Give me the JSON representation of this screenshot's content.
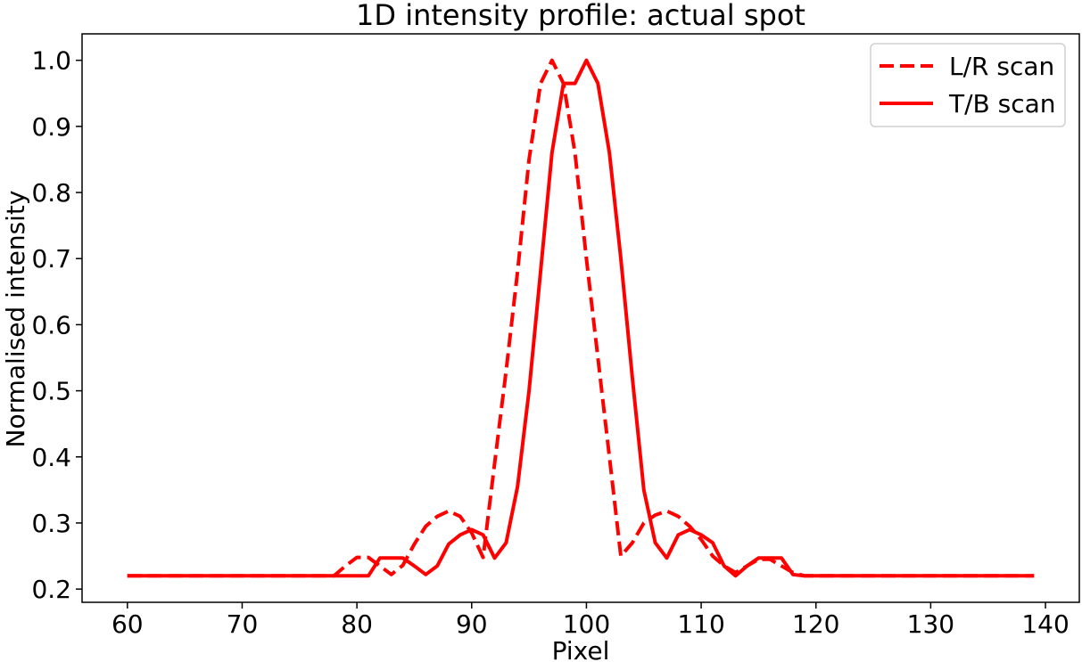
{
  "chart_data": {
    "type": "line",
    "title": "1D intensity profile: actual spot",
    "xlabel": "Pixel",
    "ylabel": "Normalised intensity",
    "xlim": [
      56.05,
      142.95
    ],
    "ylim": [
      0.18,
      1.04
    ],
    "xticks": [
      60,
      70,
      80,
      90,
      100,
      110,
      120,
      130,
      140
    ],
    "yticks": [
      0.2,
      0.3,
      0.4,
      0.5,
      0.6,
      0.7,
      0.8,
      0.9,
      1.0
    ],
    "grid": false,
    "legend_position": "top-right",
    "series": [
      {
        "name": "L/R scan",
        "color": "#ff0000",
        "linestyle": "dashed",
        "x": [
          60,
          61,
          62,
          63,
          64,
          65,
          66,
          67,
          68,
          69,
          70,
          71,
          72,
          73,
          74,
          75,
          76,
          77,
          78,
          79,
          80,
          81,
          82,
          83,
          84,
          85,
          86,
          87,
          88,
          89,
          90,
          91,
          92,
          93,
          94,
          95,
          96,
          97,
          98,
          99,
          100,
          101,
          102,
          103,
          104,
          105,
          106,
          107,
          108,
          109,
          110,
          111,
          112,
          113,
          114,
          115,
          116,
          117,
          118,
          119,
          120,
          121,
          122,
          123,
          124,
          125,
          126,
          127,
          128,
          129,
          130,
          131,
          132,
          133,
          134,
          135,
          136,
          137,
          138,
          139
        ],
        "values": [
          0.22,
          0.22,
          0.22,
          0.22,
          0.22,
          0.22,
          0.22,
          0.22,
          0.22,
          0.22,
          0.22,
          0.22,
          0.22,
          0.22,
          0.22,
          0.22,
          0.22,
          0.22,
          0.22,
          0.235,
          0.248,
          0.248,
          0.235,
          0.222,
          0.236,
          0.268,
          0.295,
          0.31,
          0.318,
          0.31,
          0.285,
          0.248,
          0.39,
          0.53,
          0.68,
          0.85,
          0.965,
          1.0,
          0.965,
          0.86,
          0.7,
          0.55,
          0.4,
          0.25,
          0.27,
          0.3,
          0.312,
          0.318,
          0.31,
          0.295,
          0.275,
          0.25,
          0.235,
          0.225,
          0.235,
          0.245,
          0.245,
          0.235,
          0.225,
          0.22,
          0.22,
          0.22,
          0.22,
          0.22,
          0.22,
          0.22,
          0.22,
          0.22,
          0.22,
          0.22,
          0.22,
          0.22,
          0.22,
          0.22,
          0.22,
          0.22,
          0.22,
          0.22,
          0.22,
          0.22
        ]
      },
      {
        "name": "T/B scan",
        "color": "#ff0000",
        "linestyle": "solid",
        "x": [
          60,
          61,
          62,
          63,
          64,
          65,
          66,
          67,
          68,
          69,
          70,
          71,
          72,
          73,
          74,
          75,
          76,
          77,
          78,
          79,
          80,
          81,
          82,
          83,
          84,
          85,
          86,
          87,
          88,
          89,
          90,
          91,
          92,
          93,
          94,
          95,
          96,
          97,
          98,
          99,
          100,
          101,
          102,
          103,
          104,
          105,
          106,
          107,
          108,
          109,
          110,
          111,
          112,
          113,
          114,
          115,
          116,
          117,
          118,
          119,
          120,
          121,
          122,
          123,
          124,
          125,
          126,
          127,
          128,
          129,
          130,
          131,
          132,
          133,
          134,
          135,
          136,
          137,
          138,
          139
        ],
        "values": [
          0.22,
          0.22,
          0.22,
          0.22,
          0.22,
          0.22,
          0.22,
          0.22,
          0.22,
          0.22,
          0.22,
          0.22,
          0.22,
          0.22,
          0.22,
          0.22,
          0.22,
          0.22,
          0.22,
          0.22,
          0.22,
          0.22,
          0.247,
          0.247,
          0.247,
          0.235,
          0.222,
          0.235,
          0.268,
          0.282,
          0.29,
          0.282,
          0.247,
          0.27,
          0.355,
          0.5,
          0.68,
          0.86,
          0.965,
          0.965,
          1.0,
          0.965,
          0.86,
          0.7,
          0.52,
          0.35,
          0.27,
          0.247,
          0.282,
          0.29,
          0.282,
          0.27,
          0.235,
          0.22,
          0.235,
          0.247,
          0.247,
          0.247,
          0.222,
          0.22,
          0.22,
          0.22,
          0.22,
          0.22,
          0.22,
          0.22,
          0.22,
          0.22,
          0.22,
          0.22,
          0.22,
          0.22,
          0.22,
          0.22,
          0.22,
          0.22,
          0.22,
          0.22,
          0.22,
          0.22
        ]
      }
    ]
  }
}
